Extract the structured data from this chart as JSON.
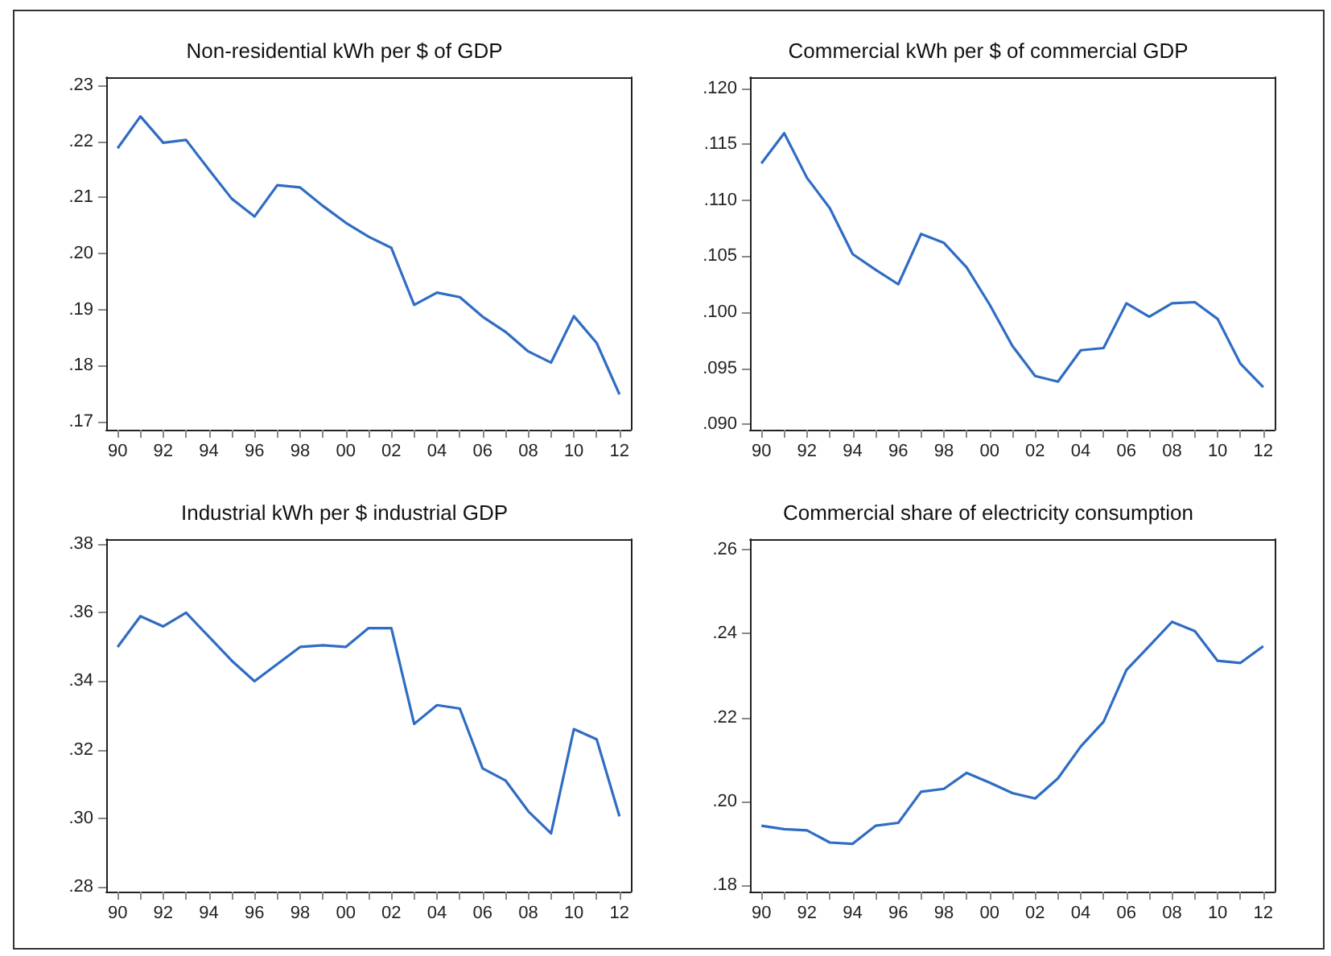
{
  "chart_data": [
    {
      "type": "line",
      "title": "Non-residential kWh per $ of GDP",
      "marker": "none",
      "categories": [
        "90",
        null,
        "92",
        null,
        "94",
        null,
        "96",
        null,
        "98",
        null,
        "00",
        null,
        "02",
        null,
        "04",
        null,
        "06",
        null,
        "08",
        null,
        "10",
        null,
        "12"
      ],
      "series": [
        {
          "color": "#2f6cc4",
          "values": [
            0.2188,
            0.2245,
            0.2198,
            0.2203,
            0.215,
            0.2098,
            0.2066,
            0.2122,
            0.2118,
            0.2085,
            0.2055,
            0.203,
            0.201,
            0.1908,
            0.193,
            0.1922,
            0.1887,
            0.186,
            0.1825,
            0.1805,
            0.1888,
            0.184,
            0.1748
          ]
        }
      ],
      "ylim": [
        0.1685,
        0.2315
      ],
      "yticks": [
        {
          "value": 0.17,
          "label": ".17"
        },
        {
          "value": 0.18,
          "label": ".18"
        },
        {
          "value": 0.19,
          "label": ".19"
        },
        {
          "value": 0.2,
          "label": ".20"
        },
        {
          "value": 0.21,
          "label": ".21"
        },
        {
          "value": 0.22,
          "label": ".22"
        },
        {
          "value": 0.23,
          "label": ".23"
        }
      ]
    },
    {
      "type": "line",
      "title": "Commercial kWh per $ of commercial GDP",
      "marker": "none",
      "categories": [
        "90",
        null,
        "92",
        null,
        "94",
        null,
        "96",
        null,
        "98",
        null,
        "00",
        null,
        "02",
        null,
        "04",
        null,
        "06",
        null,
        "08",
        null,
        "10",
        null,
        "12"
      ],
      "series": [
        {
          "color": "#2f6cc4",
          "values": [
            0.1133,
            0.116,
            0.112,
            0.1093,
            0.1052,
            0.1038,
            0.1025,
            0.107,
            0.1062,
            0.104,
            0.1007,
            0.097,
            0.0943,
            0.0938,
            0.0966,
            0.0968,
            0.1008,
            0.0996,
            0.1008,
            0.1009,
            0.0994,
            0.0954,
            0.0933
          ]
        }
      ],
      "ylim": [
        0.0895,
        0.121
      ],
      "yticks": [
        {
          "value": 0.09,
          "label": ".090"
        },
        {
          "value": 0.095,
          "label": ".095"
        },
        {
          "value": 0.1,
          "label": ".100"
        },
        {
          "value": 0.105,
          "label": ".105"
        },
        {
          "value": 0.11,
          "label": ".110"
        },
        {
          "value": 0.115,
          "label": ".115"
        },
        {
          "value": 0.12,
          "label": ".120"
        }
      ]
    },
    {
      "type": "line",
      "title": "Industrial kWh per $ industrial GDP",
      "marker": "none",
      "categories": [
        "90",
        null,
        "92",
        null,
        "94",
        null,
        "96",
        null,
        "98",
        null,
        "00",
        null,
        "02",
        null,
        "04",
        null,
        "06",
        null,
        "08",
        null,
        "10",
        null,
        "12"
      ],
      "series": [
        {
          "color": "#2f6cc4",
          "values": [
            0.35,
            0.359,
            0.356,
            0.36,
            0.353,
            0.346,
            0.34,
            0.345,
            0.35,
            0.3505,
            0.35,
            0.3555,
            0.3555,
            0.3275,
            0.333,
            0.332,
            0.3145,
            0.311,
            0.302,
            0.2955,
            0.326,
            0.323,
            0.3005
          ]
        }
      ],
      "ylim": [
        0.2785,
        0.3815
      ],
      "yticks": [
        {
          "value": 0.28,
          "label": ".28"
        },
        {
          "value": 0.3,
          "label": ".30"
        },
        {
          "value": 0.32,
          "label": ".32"
        },
        {
          "value": 0.34,
          "label": ".34"
        },
        {
          "value": 0.36,
          "label": ".36"
        },
        {
          "value": 0.38,
          "label": ".38"
        }
      ]
    },
    {
      "type": "line",
      "title": "Commercial share of electricity consumption",
      "marker": "none",
      "categories": [
        "90",
        null,
        "92",
        null,
        "94",
        null,
        "96",
        null,
        "98",
        null,
        "00",
        null,
        "02",
        null,
        "04",
        null,
        "06",
        null,
        "08",
        null,
        "10",
        null,
        "12"
      ],
      "series": [
        {
          "color": "#2f6cc4",
          "values": [
            0.1942,
            0.1934,
            0.1931,
            0.1902,
            0.1899,
            0.1942,
            0.1949,
            0.2023,
            0.203,
            0.2068,
            0.2045,
            0.202,
            0.2007,
            0.2055,
            0.2131,
            0.219,
            0.2313,
            0.237,
            0.2428,
            0.2406,
            0.2335,
            0.233,
            0.237
          ]
        }
      ],
      "ylim": [
        0.1785,
        0.2625
      ],
      "yticks": [
        {
          "value": 0.18,
          "label": ".18"
        },
        {
          "value": 0.2,
          "label": ".20"
        },
        {
          "value": 0.22,
          "label": ".22"
        },
        {
          "value": 0.24,
          "label": ".24"
        },
        {
          "value": 0.26,
          "label": ".26"
        }
      ]
    }
  ]
}
